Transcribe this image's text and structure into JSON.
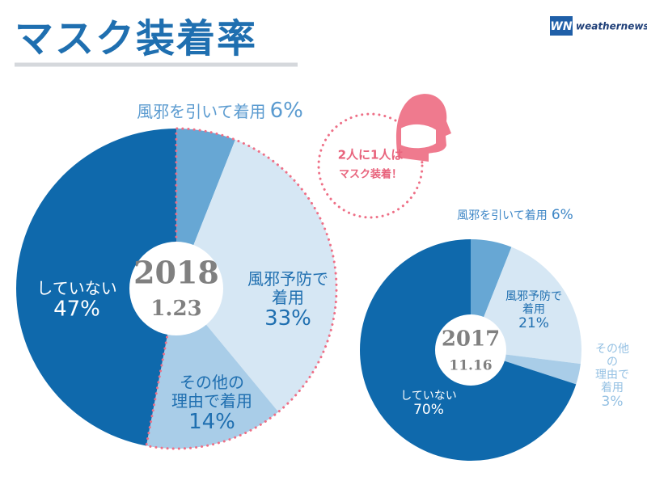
{
  "title": "マスク装着率",
  "logo": {
    "mark": "WN",
    "name": "weathernews"
  },
  "callout": [
    "2人に1人は",
    "マスク装着！"
  ],
  "chart_data": [
    {
      "type": "pie",
      "year": "2018",
      "date": "1.23",
      "categories": [
        "風邪を引いて着用",
        "風邪予防で\n着用",
        "その他の\n理由で着用",
        "していない"
      ],
      "values": [
        6,
        33,
        14,
        47
      ],
      "value_labels": [
        "6%",
        "33%",
        "14%",
        "47%"
      ],
      "colors": [
        "#67a7d4",
        "#d6e7f4",
        "#a9cde8",
        "#0f69ac"
      ]
    },
    {
      "type": "pie",
      "year": "2017",
      "date": "11.16",
      "categories": [
        "風邪を引いて着用",
        "風邪予防で\n着用",
        "その他の\n理由で着用",
        "していない"
      ],
      "values": [
        6,
        21,
        3,
        70
      ],
      "value_labels": [
        "6%",
        "21%",
        "3%",
        "70%"
      ],
      "colors": [
        "#67a7d4",
        "#d6e7f4",
        "#a9cde8",
        "#0f69ac"
      ]
    }
  ]
}
